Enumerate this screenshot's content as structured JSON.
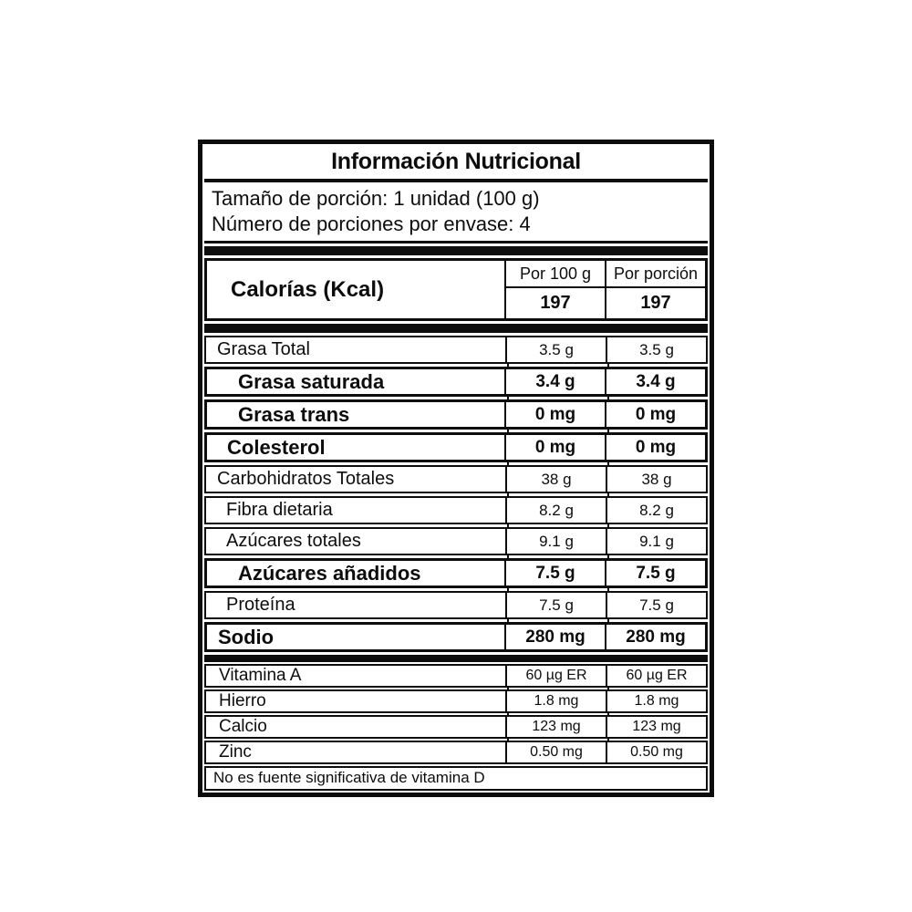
{
  "label": {
    "title": "Información Nutricional",
    "serving": {
      "line1": "Tamaño de porción: 1 unidad (100 g)",
      "line2": "Número de porciones por envase: 4"
    },
    "calories": {
      "label": "Calorías (Kcal)",
      "col1_header": "Por 100 g",
      "col2_header": "Por porción",
      "col1_value": "197",
      "col2_value": "197"
    },
    "rows": [
      {
        "label": "Grasa Total",
        "per100": "3.5 g",
        "perPortion": "3.5 g",
        "bold": false,
        "indent": 1
      },
      {
        "label": "Grasa saturada",
        "per100": "3.4 g",
        "perPortion": "3.4 g",
        "bold": true,
        "indent": 3
      },
      {
        "label": "Grasa trans",
        "per100": "0 mg",
        "perPortion": "0 mg",
        "bold": true,
        "indent": 3
      },
      {
        "label": "Colesterol",
        "per100": "0 mg",
        "perPortion": "0 mg",
        "bold": true,
        "indent": 2
      },
      {
        "label": "Carbohidratos Totales",
        "per100": "38 g",
        "perPortion": "38 g",
        "bold": false,
        "indent": 1
      },
      {
        "label": "Fibra dietaria",
        "per100": "8.2 g",
        "perPortion": "8.2 g",
        "bold": false,
        "indent": 2
      },
      {
        "label": "Azúcares totales",
        "per100": "9.1 g",
        "perPortion": "9.1 g",
        "bold": false,
        "indent": 2
      },
      {
        "label": "Azúcares añadidos",
        "per100": "7.5 g",
        "perPortion": "7.5 g",
        "bold": true,
        "indent": 3
      },
      {
        "label": "Proteína",
        "per100": "7.5 g",
        "perPortion": "7.5 g",
        "bold": false,
        "indent": 2
      },
      {
        "label": "Sodio",
        "per100": "280 mg",
        "perPortion": "280 mg",
        "bold": true,
        "indent": 1
      }
    ],
    "micronutrients": [
      {
        "label": "Vitamina A",
        "per100": "60 µg ER",
        "perPortion": "60 µg ER"
      },
      {
        "label": "Hierro",
        "per100": "1.8 mg",
        "perPortion": "1.8 mg"
      },
      {
        "label": "Calcio",
        "per100": "123 mg",
        "perPortion": "123 mg"
      },
      {
        "label": "Zinc",
        "per100": "0.50 mg",
        "perPortion": "0.50 mg"
      }
    ],
    "footnote": "No es fuente significativa de vitamina D",
    "colors": {
      "border": "#0d0d0d",
      "background": "#ffffff",
      "text": "#0d0d0d"
    }
  }
}
